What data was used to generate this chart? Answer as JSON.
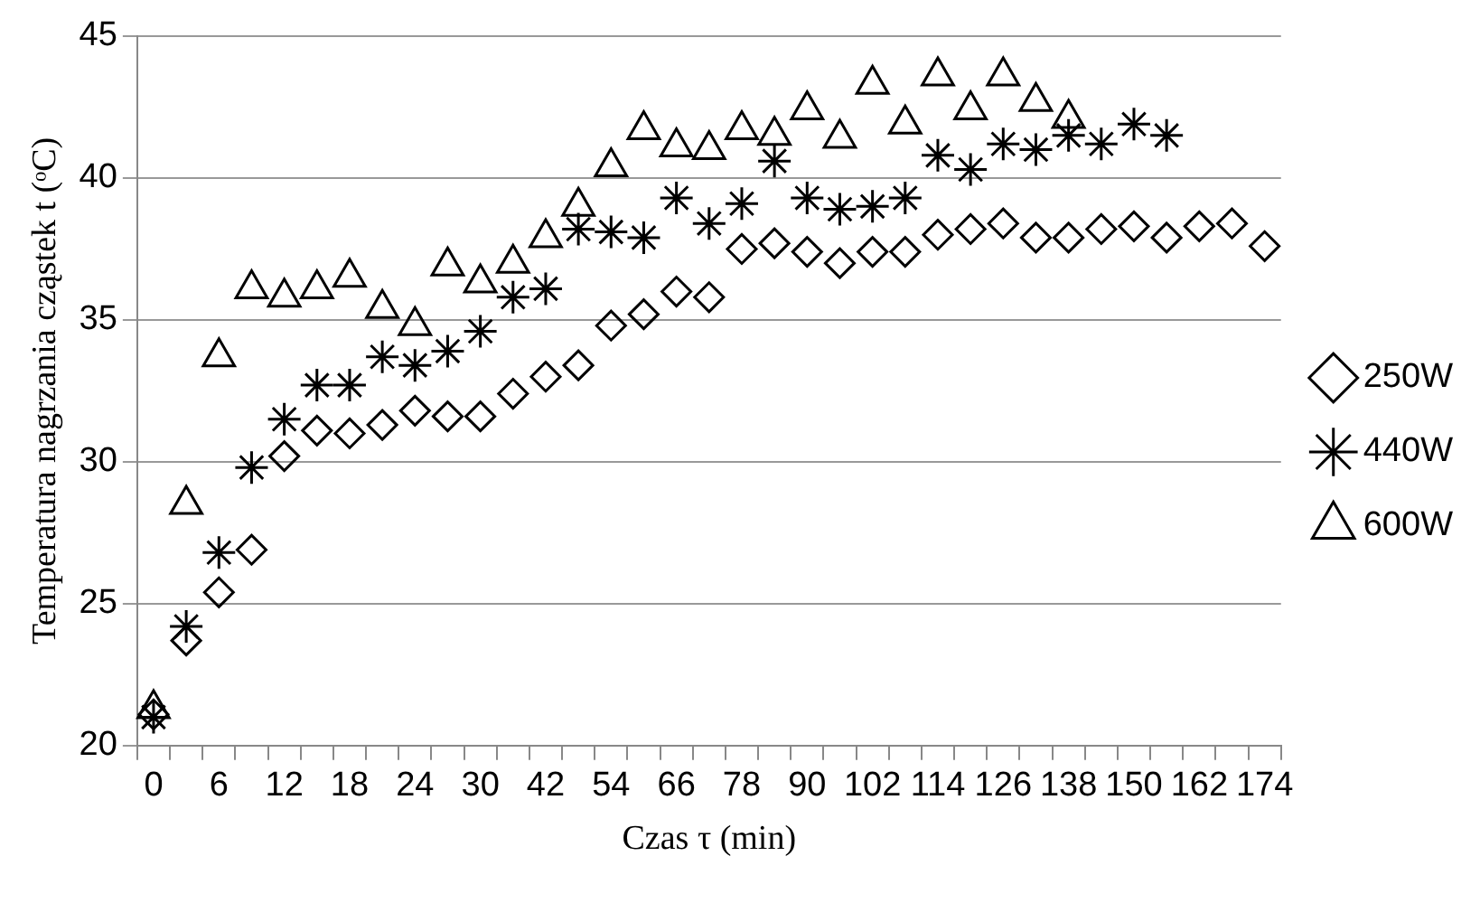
{
  "chart_data": {
    "type": "scatter",
    "xlabel": "Czas τ (min)",
    "ylabel": "Temperatura nagrzania cząstek t (ᵒC)",
    "categories": [
      "0",
      null,
      "6",
      null,
      "12",
      null,
      "18",
      null,
      "24",
      null,
      "30",
      null,
      "42",
      null,
      "54",
      null,
      "66",
      null,
      "78",
      null,
      "90",
      null,
      "102",
      null,
      "114",
      null,
      "126",
      null,
      "138",
      null,
      "150",
      null,
      "162",
      null,
      "174"
    ],
    "series": [
      {
        "name": "250W",
        "color": "#000000",
        "marker": "diamond",
        "values": [
          21.1,
          23.7,
          25.4,
          26.9,
          30.2,
          31.1,
          31.0,
          31.3,
          31.8,
          31.6,
          31.6,
          32.4,
          33.0,
          33.4,
          34.8,
          35.2,
          36.0,
          35.8,
          37.5,
          37.7,
          37.4,
          37.0,
          37.4,
          37.4,
          38.0,
          38.2,
          38.4,
          37.9,
          37.9,
          38.2,
          38.3,
          37.9,
          38.3,
          38.4,
          37.6
        ]
      },
      {
        "name": "440W",
        "color": "#000000",
        "marker": "cross",
        "values": [
          21.0,
          24.2,
          26.8,
          29.8,
          31.5,
          32.7,
          32.7,
          33.7,
          33.4,
          33.9,
          34.6,
          35.8,
          36.1,
          38.2,
          38.1,
          37.9,
          39.3,
          38.4,
          39.1,
          40.6,
          39.3,
          38.9,
          39.0,
          39.3,
          40.8,
          40.3,
          41.2,
          41.0,
          41.5,
          41.2,
          41.9,
          41.5,
          null,
          null,
          null
        ]
      },
      {
        "name": "600W",
        "color": "#000000",
        "marker": "triangle",
        "values": [
          21.3,
          28.5,
          33.7,
          36.1,
          35.8,
          36.1,
          36.5,
          35.4,
          34.8,
          36.9,
          36.3,
          37.0,
          37.9,
          39.0,
          40.4,
          41.7,
          41.1,
          41.0,
          41.7,
          41.5,
          42.4,
          41.4,
          43.3,
          41.9,
          43.6,
          42.4,
          43.6,
          42.7,
          42.1,
          null,
          null,
          null,
          null,
          null,
          null
        ]
      }
    ],
    "ylim": [
      20,
      45
    ],
    "yticks": [
      20,
      25,
      30,
      35,
      40,
      45
    ],
    "grid": "y",
    "legend": "right"
  }
}
